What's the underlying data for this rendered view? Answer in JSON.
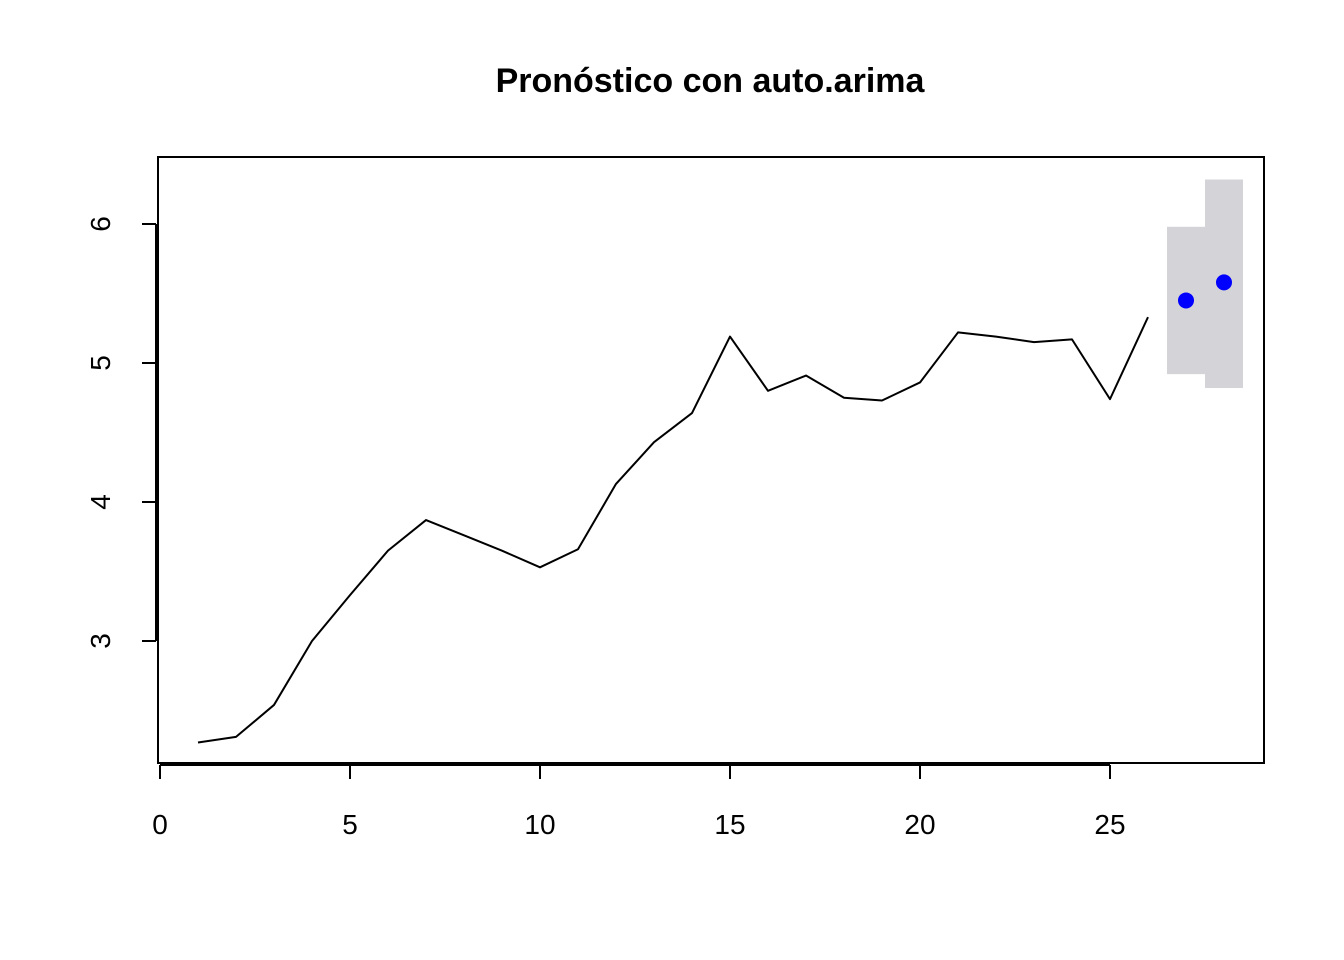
{
  "chart_data": {
    "type": "line",
    "title": "Pronóstico con auto.arima",
    "xlabel": "",
    "ylabel": "",
    "xlim": [
      0,
      28.5
    ],
    "ylim": [
      2.13,
      6.5
    ],
    "grid": false,
    "x_ticks": [
      0,
      5,
      10,
      15,
      20,
      25
    ],
    "y_ticks": [
      3,
      4,
      5,
      6
    ],
    "series": [
      {
        "x": [
          1,
          2,
          3,
          4,
          5,
          6,
          7,
          8,
          9,
          10,
          11,
          12,
          13,
          14,
          15,
          16,
          17,
          18,
          19,
          20,
          21,
          22,
          23,
          24,
          25,
          26
        ],
        "values": [
          2.27,
          2.31,
          2.54,
          3.0,
          3.33,
          3.65,
          3.87,
          3.76,
          3.65,
          3.53,
          3.66,
          4.13,
          4.43,
          4.64,
          5.19,
          4.8,
          4.91,
          4.75,
          4.73,
          4.86,
          5.22,
          5.19,
          5.15,
          5.17,
          4.74,
          5.33
        ],
        "color": "#000000"
      }
    ],
    "forecast": {
      "x": [
        27,
        28
      ],
      "mean": [
        5.45,
        5.58
      ],
      "lower": [
        4.92,
        4.82
      ],
      "upper": [
        5.98,
        6.32
      ],
      "point_color": "#0000ff",
      "band_color": "#d4d4d8"
    }
  }
}
